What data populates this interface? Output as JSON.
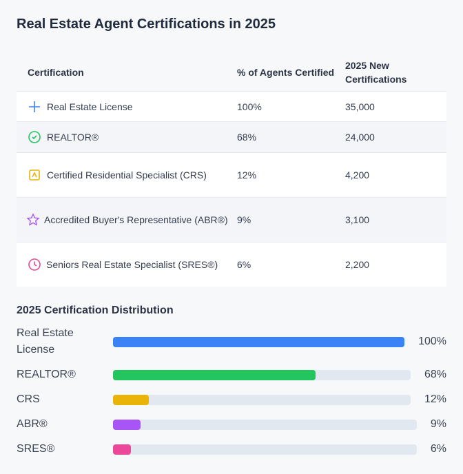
{
  "header": {
    "title": "Real Estate Agent Certifications in 2025"
  },
  "table": {
    "columns": [
      "Certification",
      "% of Agents Certified",
      "2025 New Certifications"
    ],
    "rows": [
      [
        "Real Estate License",
        "100%",
        "35,000"
      ],
      [
        "REALTOR®",
        "68%",
        "24,000"
      ],
      [
        "Certified Residential Specialist (CRS)",
        "12%",
        "4,200"
      ],
      [
        "Accredited Buyer's Representative (ABR®)",
        "9%",
        "3,100"
      ],
      [
        "Seniors Real Estate Specialist (SRES®)",
        "6%",
        "2,200"
      ]
    ]
  },
  "distribution": {
    "title": "2025 Certification Distribution",
    "labels": [
      "Real Estate License",
      "REALTOR®",
      "CRS",
      "ABR®",
      "SRES®"
    ],
    "values": [
      100,
      68,
      12,
      9,
      6
    ],
    "value_labels": [
      "100%",
      "68%",
      "12%",
      "9%",
      "6%"
    ],
    "colors": [
      "#3b82f6",
      "#22c55e",
      "#eab308",
      "#a855f7",
      "#ec4899"
    ],
    "xlim": [
      0,
      100
    ]
  }
}
